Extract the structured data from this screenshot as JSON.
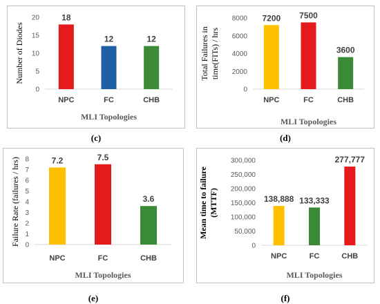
{
  "chart_data": [
    {
      "panel": "(c)",
      "type": "bar",
      "categories": [
        "NPC",
        "FC",
        "CHB"
      ],
      "values": [
        18,
        12,
        12
      ],
      "value_labels": [
        "18",
        "12",
        "12"
      ],
      "colors": [
        "#e41a1c",
        "#1f5fa6",
        "#3a8a38"
      ],
      "xlabel": "MLI Topologies",
      "ylabel": "Number of  Diodes",
      "ylim": [
        0,
        20
      ],
      "yticks": [
        "0",
        "5",
        "10",
        "15",
        "20"
      ],
      "ytick_values": [
        0,
        5,
        10,
        15,
        20
      ],
      "grid": false
    },
    {
      "panel": "(d)",
      "type": "bar",
      "categories": [
        "NPC",
        "FC",
        "CHB"
      ],
      "values": [
        7200,
        7500,
        3600
      ],
      "value_labels": [
        "7200",
        "7500",
        "3600"
      ],
      "colors": [
        "#ffc000",
        "#e41a1c",
        "#3a8a38"
      ],
      "xlabel": "MLI Topologies",
      "ylabel": "Total Failures in time(FITs) / hrs",
      "ylabel_lines": [
        "Total Failures in",
        "time(FITs) / hrs"
      ],
      "ylim": [
        0,
        8000
      ],
      "yticks": [
        "0",
        "2000",
        "4000",
        "6000",
        "8000"
      ],
      "ytick_values": [
        0,
        2000,
        4000,
        6000,
        8000
      ],
      "grid": false
    },
    {
      "panel": "(e)",
      "type": "bar",
      "categories": [
        "NPC",
        "FC",
        "CHB"
      ],
      "values": [
        7.2,
        7.5,
        3.6
      ],
      "value_labels": [
        "7.2",
        "7.5",
        "3.6"
      ],
      "colors": [
        "#ffc000",
        "#e41a1c",
        "#3a8a38"
      ],
      "xlabel": "MLI Topologies",
      "ylabel": "Failure Rate (failures / hrs)",
      "ylim": [
        0,
        8
      ],
      "yticks": [
        "0",
        "1",
        "2",
        "3",
        "4",
        "5",
        "6",
        "7",
        "8"
      ],
      "ytick_values": [
        0,
        1,
        2,
        3,
        4,
        5,
        6,
        7,
        8
      ],
      "grid": false
    },
    {
      "panel": "(f)",
      "type": "bar",
      "categories": [
        "NPC",
        "FC",
        "CHB"
      ],
      "values": [
        138888,
        133333,
        277777
      ],
      "value_labels": [
        "138,888",
        "133,333",
        "277,777"
      ],
      "colors": [
        "#ffc000",
        "#3a8a38",
        "#e41a1c"
      ],
      "xlabel": "MLI Topologies",
      "ylabel": "Mean time  to failure (MTTF)",
      "ylabel_lines": [
        "Mean time  to failure",
        "(MTTF)"
      ],
      "ylim": [
        0,
        300000
      ],
      "yticks": [
        "0",
        "50,000",
        "100,000",
        "150,000",
        "200,000",
        "250,000",
        "300,000"
      ],
      "ytick_values": [
        0,
        50000,
        100000,
        150000,
        200000,
        250000,
        300000
      ],
      "grid": false
    }
  ]
}
